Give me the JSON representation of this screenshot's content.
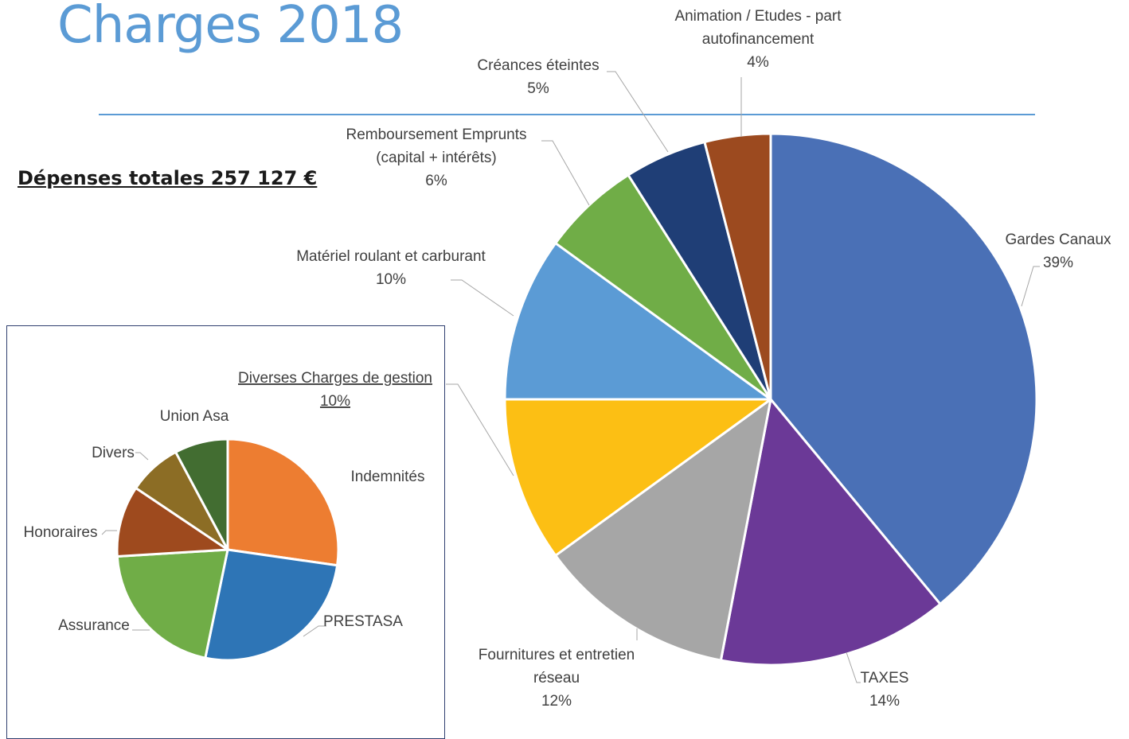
{
  "title": "Charges 2018",
  "total_label": "Dépenses totales  257 127 €",
  "colors": {
    "title": "#5b9bd5",
    "rule": "#5b9bd5",
    "inset_border": "#2f3f6f"
  },
  "chart_data": [
    {
      "type": "pie",
      "title": "",
      "slices": [
        {
          "label": [
            "Gardes Canaux"
          ],
          "pct": "39%",
          "value": 39,
          "color": "#4a70b6"
        },
        {
          "label": [
            "TAXES"
          ],
          "pct": "14%",
          "value": 14,
          "color": "#6b3997"
        },
        {
          "label": [
            "Fournitures et entretien",
            "réseau"
          ],
          "pct": "12%",
          "value": 12,
          "color": "#a6a6a6"
        },
        {
          "label": [
            "Diverses Charges de gestion"
          ],
          "pct": "10%",
          "value": 10,
          "color": "#fcbf14",
          "underline": true
        },
        {
          "label": [
            "Matériel roulant et carburant"
          ],
          "pct": "10%",
          "value": 10,
          "color": "#5b9bd5"
        },
        {
          "label": [
            "Remboursement Emprunts",
            "(capital + intérêts)"
          ],
          "pct": "6%",
          "value": 6,
          "color": "#70ad47"
        },
        {
          "label": [
            "Créances éteintes"
          ],
          "pct": "5%",
          "value": 5,
          "color": "#1f3e76"
        },
        {
          "label": [
            "Animation / Etudes - part",
            "autofinancement"
          ],
          "pct": "4%",
          "value": 4,
          "color": "#9c4a1f"
        }
      ]
    },
    {
      "type": "pie",
      "title": "",
      "slices": [
        {
          "label": "Indemnités",
          "value": 21,
          "color": "#ed7d31"
        },
        {
          "label": "PRESTASA",
          "value": 20,
          "color": "#2e75b6"
        },
        {
          "label": "Assurance",
          "value": 16,
          "color": "#70ad47"
        },
        {
          "label": "Honoraires",
          "value": 8,
          "color": "#9e4a1e"
        },
        {
          "label": "Divers",
          "value": 6,
          "color": "#8c6d25"
        },
        {
          "label": "Union Asa",
          "value": 6,
          "color": "#426d31"
        }
      ]
    }
  ]
}
